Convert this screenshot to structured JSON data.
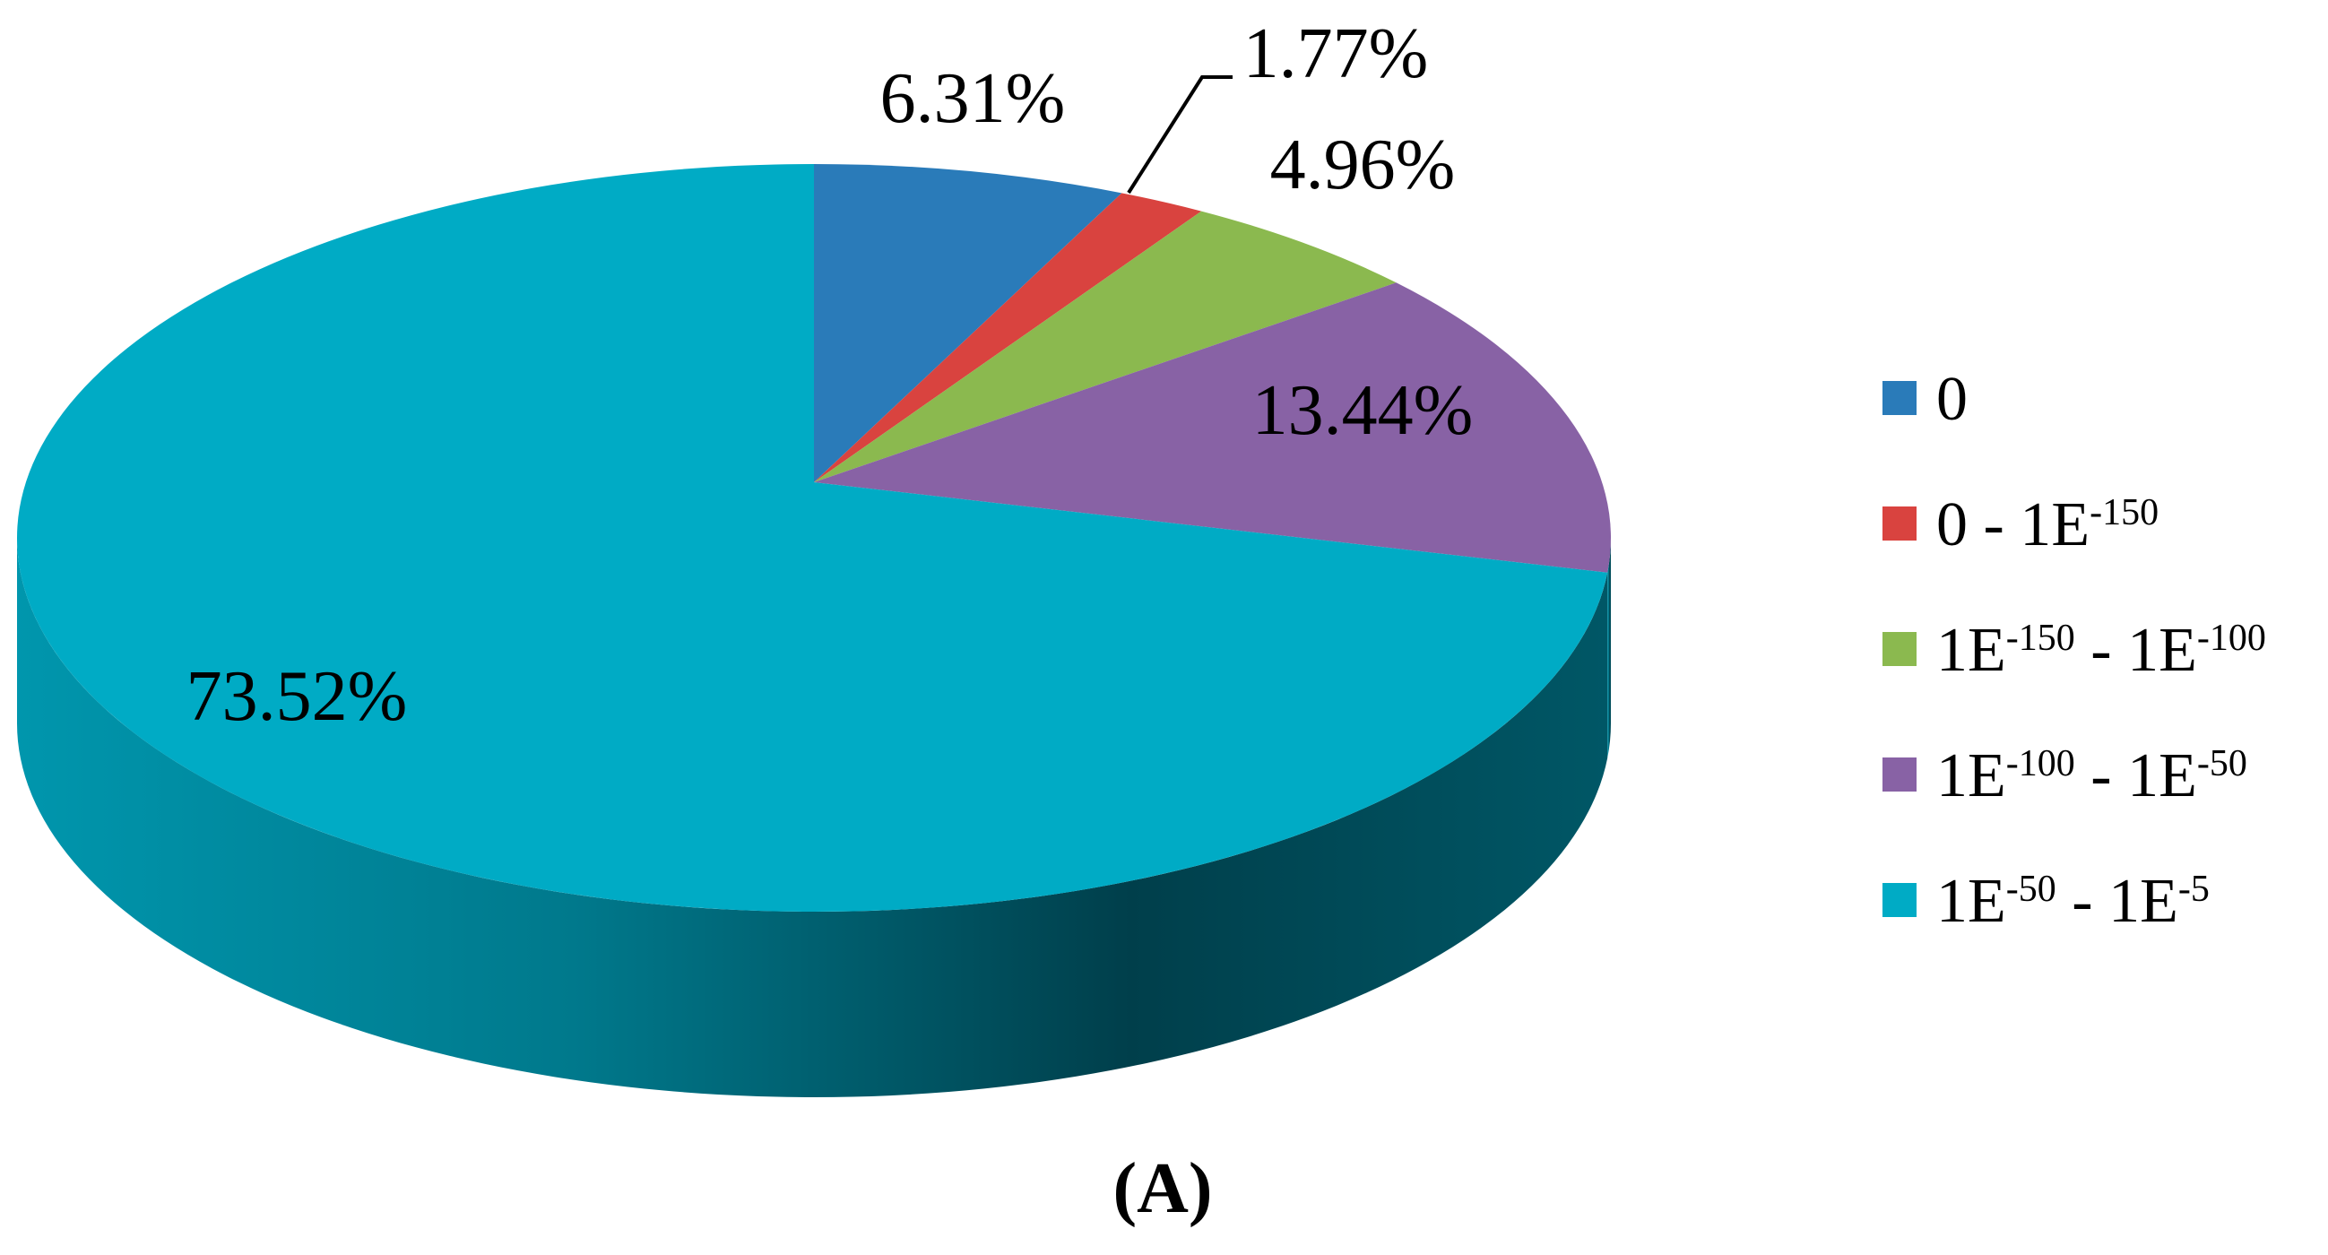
{
  "chart_data": {
    "type": "pie",
    "caption": "(A)",
    "categories": [
      "0",
      "0 - 1E-150",
      "1E-150 - 1E-100",
      "1E-100 - 1E-50",
      "1E-50 - 1E-5"
    ],
    "values": [
      6.31,
      1.77,
      4.96,
      13.44,
      73.52
    ],
    "value_labels": [
      "6.31%",
      "1.77%",
      "4.96%",
      "13.44%",
      "73.52%"
    ],
    "colors": [
      "#2a7bb9",
      "#d9433f",
      "#8bb94f",
      "#8862a5",
      "#00abc5"
    ],
    "legend": "right"
  }
}
